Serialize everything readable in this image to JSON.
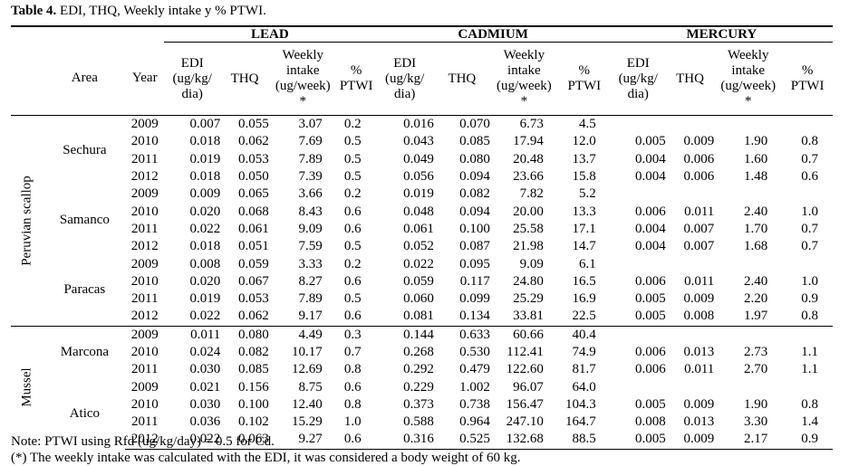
{
  "title": {
    "bold": "Table 4.",
    "rest": " EDI, THQ, Weekly intake y % PTWI."
  },
  "groups": {
    "lead": "LEAD",
    "cadmium": "CADMIUM",
    "mercury": "MERCURY"
  },
  "headers": {
    "area": "Area",
    "year": "Year",
    "edi": [
      "EDI",
      "(ug/kg/",
      "dia)"
    ],
    "thq": "THQ",
    "weekly": [
      "Weekly",
      "intake",
      "(ug/week)",
      "*"
    ],
    "ptwi": [
      "%",
      "PTWI"
    ]
  },
  "species": [
    "Peruvian scallop",
    "Mussel"
  ],
  "areas": [
    "Sechura",
    "Samanco",
    "Paracas",
    "Marcona",
    "Atico"
  ],
  "rows": [
    [
      "2009",
      "0.007",
      "0.055",
      "3.07",
      "0.2",
      "0.016",
      "0.070",
      "6.73",
      "4.5",
      "",
      "",
      "",
      ""
    ],
    [
      "2010",
      "0.018",
      "0.062",
      "7.69",
      "0.5",
      "0.043",
      "0.085",
      "17.94",
      "12.0",
      "0.005",
      "0.009",
      "1.90",
      "0.8"
    ],
    [
      "2011",
      "0.019",
      "0.053",
      "7.89",
      "0.5",
      "0.049",
      "0.080",
      "20.48",
      "13.7",
      "0.004",
      "0.006",
      "1.60",
      "0.7"
    ],
    [
      "2012",
      "0.018",
      "0.050",
      "7.39",
      "0.5",
      "0.056",
      "0.094",
      "23.66",
      "15.8",
      "0.004",
      "0.006",
      "1.48",
      "0.6"
    ],
    [
      "2009",
      "0.009",
      "0.065",
      "3.66",
      "0.2",
      "0.019",
      "0.082",
      "7.82",
      "5.2",
      "",
      "",
      "",
      ""
    ],
    [
      "2010",
      "0.020",
      "0.068",
      "8.43",
      "0.6",
      "0.048",
      "0.094",
      "20.00",
      "13.3",
      "0.006",
      "0.011",
      "2.40",
      "1.0"
    ],
    [
      "2011",
      "0.022",
      "0.061",
      "9.09",
      "0.6",
      "0.061",
      "0.100",
      "25.58",
      "17.1",
      "0.004",
      "0.007",
      "1.70",
      "0.7"
    ],
    [
      "2012",
      "0.018",
      "0.051",
      "7.59",
      "0.5",
      "0.052",
      "0.087",
      "21.98",
      "14.7",
      "0.004",
      "0.007",
      "1.68",
      "0.7"
    ],
    [
      "2009",
      "0.008",
      "0.059",
      "3.33",
      "0.2",
      "0.022",
      "0.095",
      "9.09",
      "6.1",
      "",
      "",
      "",
      ""
    ],
    [
      "2010",
      "0.020",
      "0.067",
      "8.27",
      "0.6",
      "0.059",
      "0.117",
      "24.80",
      "16.5",
      "0.006",
      "0.011",
      "2.40",
      "1.0"
    ],
    [
      "2011",
      "0.019",
      "0.053",
      "7.89",
      "0.5",
      "0.060",
      "0.099",
      "25.29",
      "16.9",
      "0.005",
      "0.009",
      "2.20",
      "0.9"
    ],
    [
      "2012",
      "0.022",
      "0.062",
      "9.17",
      "0.6",
      "0.081",
      "0.134",
      "33.81",
      "22.5",
      "0.005",
      "0.008",
      "1.97",
      "0.8"
    ],
    [
      "2009",
      "0.011",
      "0.080",
      "4.49",
      "0.3",
      "0.144",
      "0.633",
      "60.66",
      "40.4",
      "",
      "",
      "",
      ""
    ],
    [
      "2010",
      "0.024",
      "0.082",
      "10.17",
      "0.7",
      "0.268",
      "0.530",
      "112.41",
      "74.9",
      "0.006",
      "0.013",
      "2.73",
      "1.1"
    ],
    [
      "2011",
      "0.030",
      "0.085",
      "12.69",
      "0.8",
      "0.292",
      "0.479",
      "122.60",
      "81.7",
      "0.006",
      "0.011",
      "2.70",
      "1.1"
    ],
    [
      "2009",
      "0.021",
      "0.156",
      "8.75",
      "0.6",
      "0.229",
      "1.002",
      "96.07",
      "64.0",
      "",
      "",
      "",
      ""
    ],
    [
      "2010",
      "0.030",
      "0.100",
      "12.40",
      "0.8",
      "0.373",
      "0.738",
      "156.47",
      "104.3",
      "0.005",
      "0.009",
      "1.90",
      "0.8"
    ],
    [
      "2011",
      "0.036",
      "0.102",
      "15.29",
      "1.0",
      "0.588",
      "0.964",
      "247.10",
      "164.7",
      "0.008",
      "0.013",
      "3.30",
      "1.4"
    ],
    [
      "2012",
      "0.022",
      "0.063",
      "9.27",
      "0.6",
      "0.316",
      "0.525",
      "132.68",
      "88.5",
      "0.005",
      "0.009",
      "2.17",
      "0.9"
    ]
  ],
  "notes": [
    "Note: PTWI using Rfd (ug/kg/day) = 0.5 for Cd.",
    "(*) The weekly intake was calculated with the EDI, it was considered a body weight of 60 kg."
  ]
}
